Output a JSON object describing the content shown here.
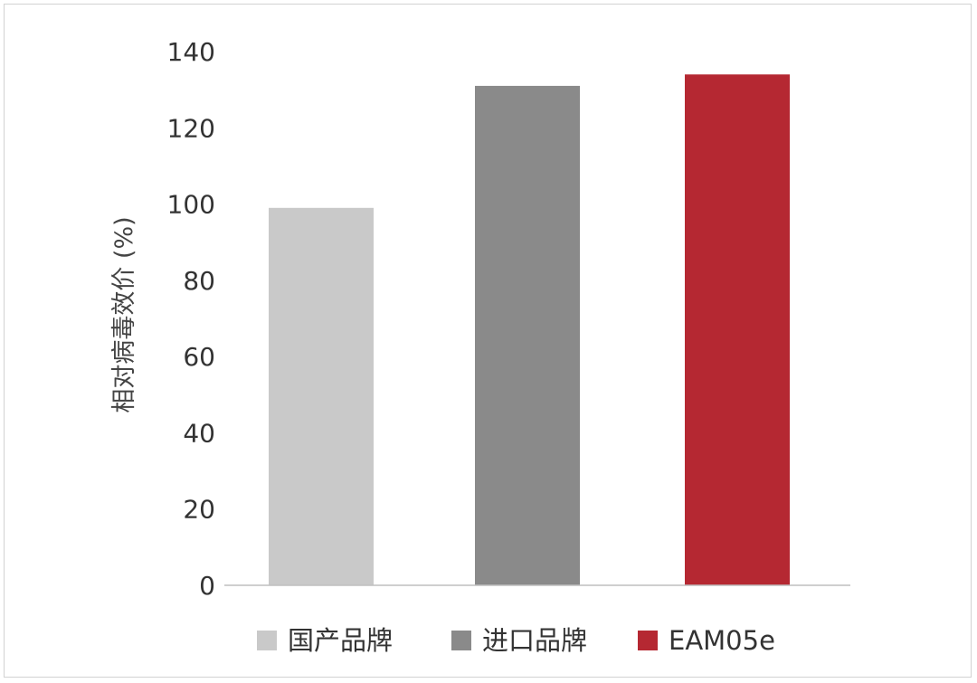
{
  "chart_data": {
    "type": "bar",
    "title": "",
    "xlabel": "",
    "ylabel": "相对病毒效价 (%)",
    "ylim": [
      0,
      140
    ],
    "yticks": [
      0,
      20,
      40,
      60,
      80,
      100,
      120,
      140
    ],
    "categories": [
      "国产品牌",
      "进口品牌",
      "EAM05e"
    ],
    "values": [
      99,
      131,
      134
    ],
    "colors": [
      "#c9c9c9",
      "#8a8a8a",
      "#b52832"
    ],
    "grid": false,
    "legend": {
      "placement": "bottom",
      "entries": [
        "国产品牌",
        "进口品牌",
        "EAM05e"
      ]
    }
  }
}
